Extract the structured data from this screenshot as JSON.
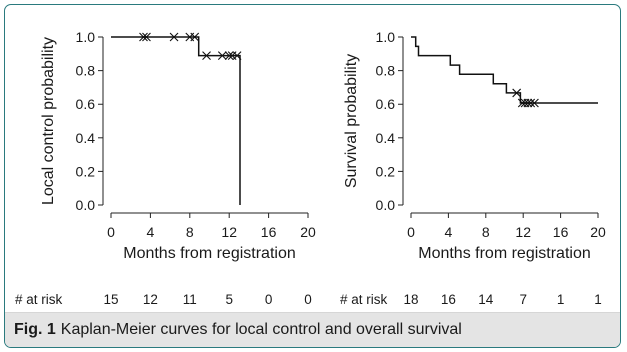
{
  "figure": {
    "label": "Fig. 1",
    "caption": "Kaplan-Meier curves for local control and overall survival"
  },
  "risk_label": "# at risk",
  "chart_data": [
    {
      "type": "line",
      "step": true,
      "title": "",
      "xlabel": "Months from registration",
      "ylabel": "Local control probability",
      "xlim": [
        0,
        20
      ],
      "ylim": [
        0,
        1
      ],
      "xticks": [
        0,
        4,
        8,
        12,
        16,
        20
      ],
      "yticks": [
        "0.0",
        "0.2",
        "0.4",
        "0.6",
        "0.8",
        "1.0"
      ],
      "grid": false,
      "steps": [
        [
          0,
          1.0
        ],
        [
          8.9,
          1.0
        ],
        [
          8.9,
          0.889
        ],
        [
          13.1,
          0.889
        ],
        [
          13.1,
          0.0
        ]
      ],
      "censored": [
        [
          3.3,
          1.0
        ],
        [
          3.6,
          1.0
        ],
        [
          6.4,
          1.0
        ],
        [
          8.0,
          1.0
        ],
        [
          8.5,
          1.0
        ],
        [
          9.7,
          0.889
        ],
        [
          11.3,
          0.889
        ],
        [
          12.0,
          0.889
        ],
        [
          12.3,
          0.889
        ],
        [
          12.8,
          0.889
        ]
      ],
      "risk_times": [
        0,
        4,
        8,
        12,
        16,
        20
      ],
      "at_risk": [
        15,
        12,
        11,
        5,
        0,
        0
      ]
    },
    {
      "type": "line",
      "step": true,
      "title": "",
      "xlabel": "Months from registration",
      "ylabel": "Survival probability",
      "xlim": [
        0,
        20
      ],
      "ylim": [
        0,
        1
      ],
      "xticks": [
        0,
        4,
        8,
        12,
        16,
        20
      ],
      "yticks": [
        "0.0",
        "0.2",
        "0.4",
        "0.6",
        "0.8",
        "1.0"
      ],
      "grid": false,
      "steps": [
        [
          0,
          1.0
        ],
        [
          0.5,
          1.0
        ],
        [
          0.5,
          0.944
        ],
        [
          0.8,
          0.944
        ],
        [
          0.8,
          0.889
        ],
        [
          4.2,
          0.889
        ],
        [
          4.2,
          0.833
        ],
        [
          5.2,
          0.833
        ],
        [
          5.2,
          0.778
        ],
        [
          8.8,
          0.778
        ],
        [
          8.8,
          0.722
        ],
        [
          10.2,
          0.722
        ],
        [
          10.2,
          0.667
        ],
        [
          11.7,
          0.667
        ],
        [
          11.7,
          0.607
        ],
        [
          20,
          0.607
        ]
      ],
      "censored": [
        [
          11.3,
          0.667
        ],
        [
          11.9,
          0.607
        ],
        [
          12.2,
          0.607
        ],
        [
          12.5,
          0.607
        ],
        [
          12.8,
          0.607
        ],
        [
          13.2,
          0.607
        ]
      ],
      "risk_times": [
        0,
        4,
        8,
        12,
        16,
        20
      ],
      "at_risk": [
        18,
        16,
        14,
        7,
        1,
        1
      ]
    }
  ]
}
